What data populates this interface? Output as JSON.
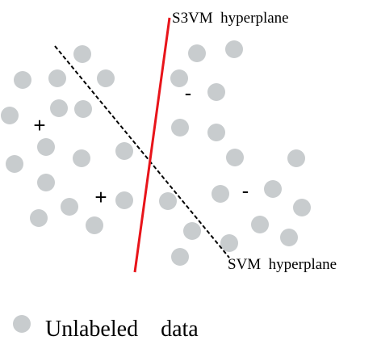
{
  "labels": {
    "s3vm": "S3VM  hyperplane",
    "svm": "SVM  hyperplane",
    "legend": "Unlabeled    data",
    "plus": "+",
    "minus": "-"
  },
  "colors": {
    "unlabeled_point": "#c8ccce",
    "s3vm_line": "#e8141a",
    "svm_line": "#000000",
    "text": "#000000"
  }
}
